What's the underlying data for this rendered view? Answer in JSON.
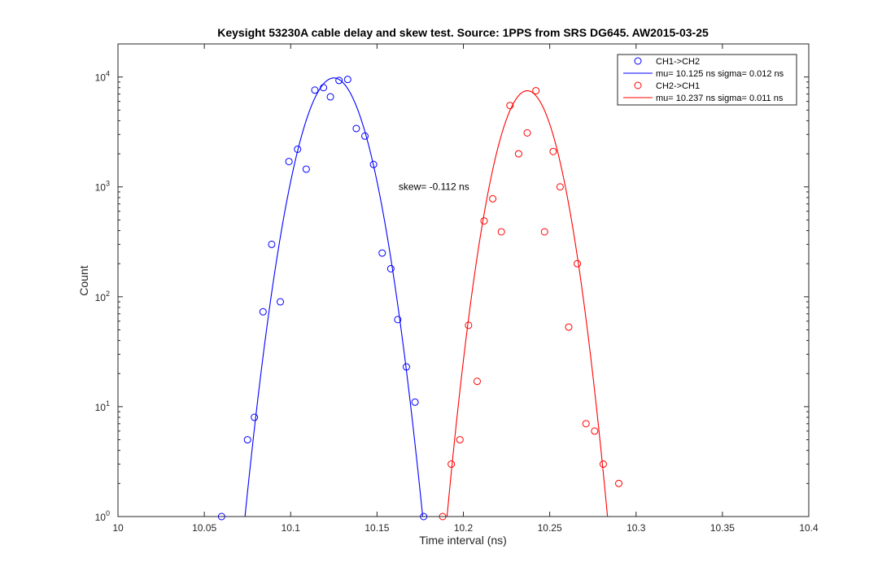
{
  "chart_data": {
    "type": "scatter",
    "title": "Keysight 53230A cable delay and skew test. Source: 1PPS from SRS DG645. AW2015-03-25",
    "xlabel": "Time interval (ns)",
    "ylabel": "Count",
    "xlim": [
      10,
      10.4
    ],
    "ylim": [
      1,
      20000
    ],
    "yscale": "log",
    "grid": false,
    "legend_position": "top-right",
    "x_ticks": [
      "10",
      "10.05",
      "10.1",
      "10.15",
      "10.2",
      "10.25",
      "10.3",
      "10.35",
      "10.4"
    ],
    "y_ticks": [
      {
        "base": "10",
        "exp": "0"
      },
      {
        "base": "10",
        "exp": "1"
      },
      {
        "base": "10",
        "exp": "2"
      },
      {
        "base": "10",
        "exp": "3"
      },
      {
        "base": "10",
        "exp": "4"
      }
    ],
    "series": [
      {
        "name": "CH1->CH2",
        "kind": "markers",
        "marker": "circle",
        "color": "#0000ff",
        "points": [
          [
            10.06,
            1
          ],
          [
            10.075,
            5
          ],
          [
            10.079,
            8
          ],
          [
            10.084,
            73
          ],
          [
            10.089,
            300
          ],
          [
            10.094,
            90
          ],
          [
            10.099,
            1700
          ],
          [
            10.104,
            2200
          ],
          [
            10.109,
            1450
          ],
          [
            10.114,
            7600
          ],
          [
            10.119,
            8000
          ],
          [
            10.123,
            6600
          ],
          [
            10.128,
            9300
          ],
          [
            10.133,
            9500
          ],
          [
            10.138,
            3400
          ],
          [
            10.143,
            2900
          ],
          [
            10.148,
            1600
          ],
          [
            10.153,
            250
          ],
          [
            10.158,
            180
          ],
          [
            10.162,
            62
          ],
          [
            10.167,
            23
          ],
          [
            10.172,
            11
          ],
          [
            10.177,
            1
          ]
        ]
      },
      {
        "name": "mu= 10.125 ns sigma= 0.012 ns",
        "kind": "gaussian-fit",
        "color": "#0000ff",
        "mu": 10.125,
        "sigma": 0.012,
        "peak": 9800
      },
      {
        "name": "CH2->CH1",
        "kind": "markers",
        "marker": "circle",
        "color": "#ff0000",
        "points": [
          [
            10.188,
            1
          ],
          [
            10.193,
            3
          ],
          [
            10.198,
            5
          ],
          [
            10.203,
            55
          ],
          [
            10.208,
            17
          ],
          [
            10.212,
            490
          ],
          [
            10.217,
            780
          ],
          [
            10.222,
            390
          ],
          [
            10.227,
            5500
          ],
          [
            10.232,
            2000
          ],
          [
            10.237,
            3100
          ],
          [
            10.242,
            7500
          ],
          [
            10.247,
            390
          ],
          [
            10.252,
            2100
          ],
          [
            10.256,
            1000
          ],
          [
            10.261,
            53
          ],
          [
            10.266,
            200
          ],
          [
            10.271,
            7
          ],
          [
            10.276,
            6
          ],
          [
            10.281,
            3
          ],
          [
            10.29,
            2
          ]
        ]
      },
      {
        "name": "mu= 10.237 ns sigma= 0.011 ns",
        "kind": "gaussian-fit",
        "color": "#ff0000",
        "mu": 10.237,
        "sigma": 0.011,
        "peak": 7500
      }
    ],
    "annotations": [
      {
        "text": "skew= -0.112 ns",
        "x": 10.1625,
        "y": 1000
      }
    ]
  }
}
